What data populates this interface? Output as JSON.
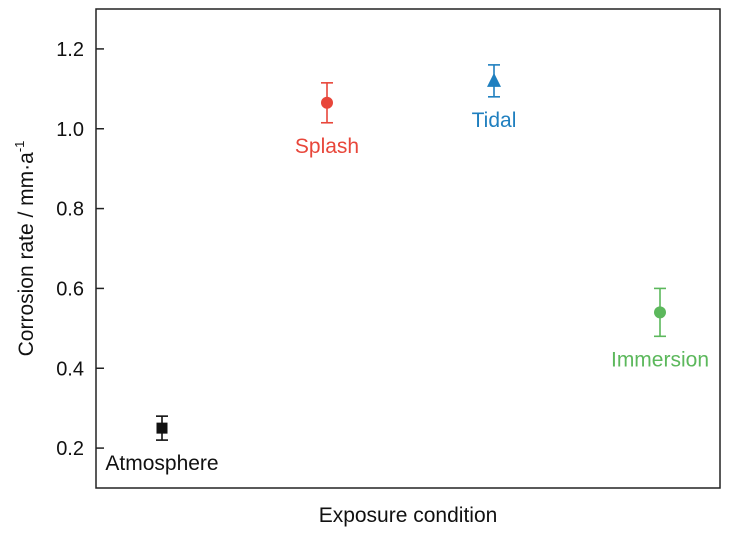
{
  "chart_data": {
    "type": "scatter",
    "title": "",
    "xlabel": "Exposure condition",
    "ylabel": "Corrosion rate / mm·a",
    "ylabel_superscript": "-1",
    "ylim": [
      0.1,
      1.3
    ],
    "yticks": [
      "0.2",
      "0.4",
      "0.6",
      "0.8",
      "1.0",
      "1.2"
    ],
    "grid": false,
    "legend": "none",
    "series": [
      {
        "name": "Atmosphere",
        "x": 1,
        "y": 0.25,
        "error": 0.03,
        "marker": "square",
        "color": "#111111",
        "label_position": "below"
      },
      {
        "name": "Splash",
        "x": 2,
        "y": 1.065,
        "error": 0.05,
        "marker": "circle",
        "color": "#e8463a",
        "label_position": "below"
      },
      {
        "name": "Tidal",
        "x": 3,
        "y": 1.12,
        "error": 0.04,
        "marker": "triangle",
        "color": "#1f7fbf",
        "label_position": "below"
      },
      {
        "name": "Immersion",
        "x": 4,
        "y": 0.54,
        "error": 0.06,
        "marker": "circle",
        "color": "#5cb85c",
        "label_position": "below"
      }
    ]
  }
}
